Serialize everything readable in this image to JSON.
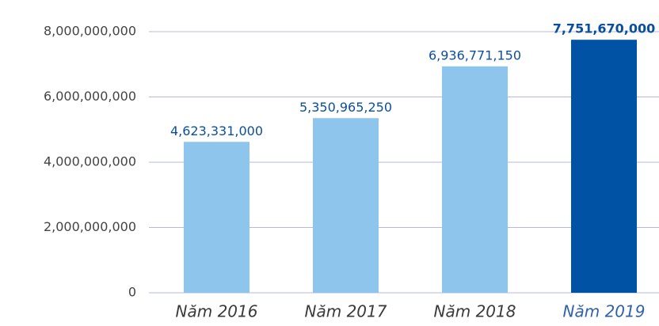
{
  "chart_data": {
    "type": "bar",
    "categories": [
      "Năm 2016",
      "Năm 2017",
      "Năm 2018",
      "Năm 2019"
    ],
    "values": [
      4623331000,
      5350965250,
      6936771150,
      7751670000
    ],
    "value_labels": [
      "4,623,331,000",
      "5,350,965,250",
      "6,936,771,150",
      "7,751,670,000"
    ],
    "colors": [
      "#8ec5ec",
      "#8ec5ec",
      "#8ec5ec",
      "#0052a5"
    ],
    "value_label_bold": [
      false,
      false,
      false,
      true
    ],
    "category_label_colors": [
      "#3a3a3a",
      "#3a3a3a",
      "#3a3a3a",
      "#2f62ad"
    ],
    "value_label_color": "#0b4f9c",
    "ylim": [
      0,
      8000000000
    ],
    "yticks": [
      0,
      {
        "value": 2000000000,
        "label": "2,000,000,000"
      },
      {
        "value": 4000000000,
        "label": "4,000,000,000"
      },
      {
        "value": 6000000000,
        "label": "6,000,000,000"
      },
      {
        "value": 8000000000,
        "label": "8,000,000,000"
      }
    ],
    "grid": true
  }
}
